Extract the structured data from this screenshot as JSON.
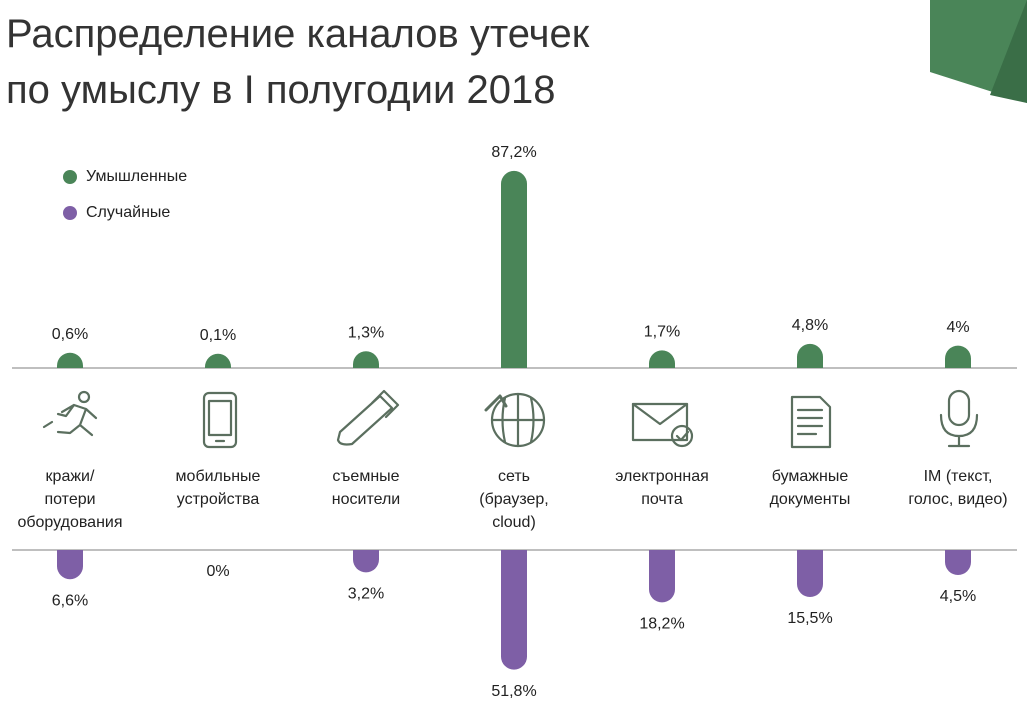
{
  "chart_data": {
    "type": "bar",
    "title": [
      "Распределение каналов утечек",
      "по умыслу в I полугодии 2018"
    ],
    "categories": [
      [
        "кражи/",
        "потери",
        "оборудования"
      ],
      [
        "мобильные",
        "устройства"
      ],
      [
        "съемные",
        "носители"
      ],
      [
        "сеть",
        "(браузер,",
        "cloud)"
      ],
      [
        "электронная",
        "почта"
      ],
      [
        "бумажные",
        "документы"
      ],
      [
        "IM (текст,",
        "голос, видео)"
      ]
    ],
    "series": [
      {
        "name": "Умышленные",
        "color": "#4a8558",
        "values": [
          0.6,
          0.1,
          1.3,
          87.2,
          1.7,
          4.8,
          4
        ],
        "value_labels": [
          "0,6%",
          "0,1%",
          "1,3%",
          "87,2%",
          "1,7%",
          "4,8%",
          "4%"
        ]
      },
      {
        "name": "Случайные",
        "color": "#7e5fa6",
        "values": [
          6.6,
          0,
          3.2,
          51.8,
          18.2,
          15.5,
          4.5
        ],
        "value_labels": [
          "6,6%",
          "0%",
          "3,2%",
          "51,8%",
          "18,2%",
          "15,5%",
          "4,5%"
        ]
      }
    ]
  }
}
